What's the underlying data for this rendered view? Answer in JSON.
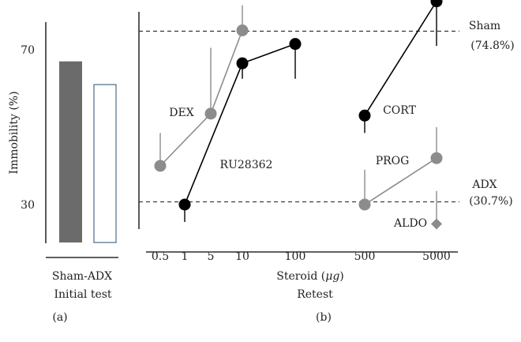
{
  "colors": {
    "black_series": "#000000",
    "gray_series": "#8c8c8c",
    "bar_sham": "#6b6b6b",
    "bar_adx_stroke": "#4a6b8a",
    "axis": "#000000",
    "reference_line": "#333333"
  },
  "chart_data": [
    {
      "panel": "a",
      "type": "bar",
      "ylabel": "Immobility (%)",
      "yticks": [
        30,
        70
      ],
      "ylim": [
        20,
        78
      ],
      "categories": [
        "Sham",
        "ADX"
      ],
      "values": [
        67,
        61
      ],
      "category_label": "Sham-ADX",
      "subtitle": "Initial test",
      "panel_label": "(a)"
    },
    {
      "panel": "b",
      "type": "line",
      "xlabel_prefix": "Steroid (",
      "xlabel_unit": "μg",
      "xlabel_suffix": ")",
      "subtitle": "Retest",
      "panel_label": "(b)",
      "x_ticks": [
        "0.5",
        "1",
        "5",
        "10",
        "100",
        "500",
        "5000"
      ],
      "ylim": [
        20,
        78
      ],
      "reference_lines": [
        {
          "name": "Sham",
          "value": 74.8,
          "label": "Sham",
          "value_label": "(74.8%)"
        },
        {
          "name": "ADX",
          "value": 30.7,
          "label": "ADX",
          "value_label": "(30.7%)"
        }
      ],
      "series": [
        {
          "name": "DEX",
          "label": "DEX",
          "color": "gray",
          "marker": "circle",
          "x": [
            "0.5",
            "5",
            "10"
          ],
          "y": [
            40,
            53.5,
            75
          ],
          "err": [
            8.5,
            17,
            6.5
          ],
          "err_dir": "up"
        },
        {
          "name": "RU28362",
          "label": "RU28362",
          "color": "black",
          "marker": "circle",
          "x": [
            "1",
            "10",
            "100"
          ],
          "y": [
            30,
            66.5,
            71.5
          ],
          "err": [
            4.5,
            4,
            9
          ],
          "err_dir": "down"
        },
        {
          "name": "CORT",
          "label": "CORT",
          "color": "black",
          "marker": "circle",
          "x": [
            "500",
            "5000"
          ],
          "y": [
            53,
            82.5
          ],
          "err": [
            4.5,
            11.5
          ],
          "err_dir": "down"
        },
        {
          "name": "PROG",
          "label": "PROG",
          "color": "gray",
          "marker": "circle",
          "x": [
            "500",
            "5000"
          ],
          "y": [
            30,
            42
          ],
          "err": [
            9,
            8
          ],
          "err_dir": "up"
        },
        {
          "name": "ALDO",
          "label": "ALDO",
          "color": "gray",
          "marker": "diamond",
          "x": [
            "5000"
          ],
          "y": [
            25
          ],
          "err": [
            8.5
          ],
          "err_dir": "up"
        }
      ]
    }
  ]
}
